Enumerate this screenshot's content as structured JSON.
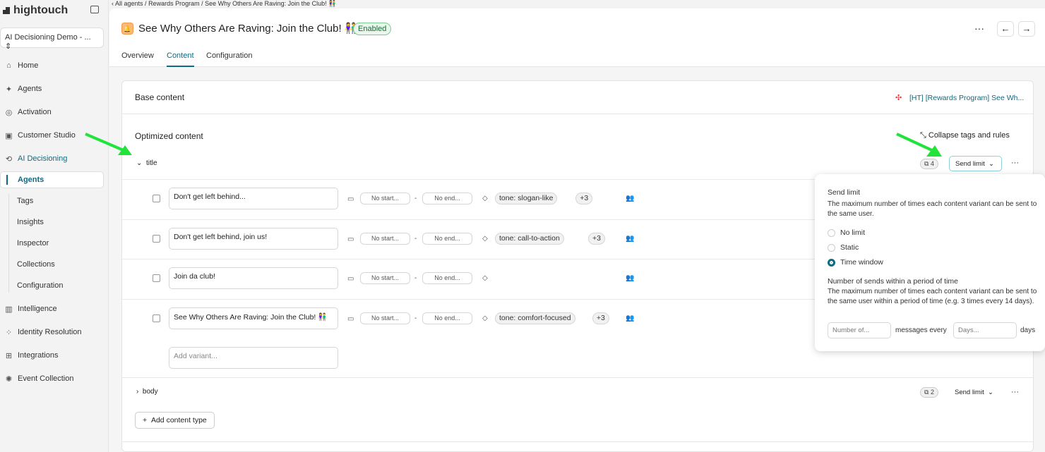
{
  "sidebar": {
    "logo": "hightouch",
    "workspace": "AI Decisioning Demo - ... ⇕",
    "items": [
      {
        "label": "Home",
        "icon": "home-icon"
      },
      {
        "label": "Agents",
        "icon": "sparkle-icon"
      },
      {
        "label": "Activation",
        "icon": "activation-icon"
      },
      {
        "label": "Customer Studio",
        "icon": "studio-icon"
      },
      {
        "label": "AI Decisioning",
        "icon": "ai-icon"
      }
    ],
    "sub_items": [
      "Agents",
      "Tags",
      "Insights",
      "Inspector",
      "Collections",
      "Configuration"
    ],
    "more_items": [
      {
        "label": "Intelligence",
        "icon": "chart-icon"
      },
      {
        "label": "Identity Resolution",
        "icon": "identity-icon"
      },
      {
        "label": "Integrations",
        "icon": "integrations-icon"
      },
      {
        "label": "Event Collection",
        "icon": "event-icon"
      }
    ]
  },
  "breadcrumb": [
    "All agents",
    "Rewards Program",
    "See Why Others Are Raving: Join the Club! 👫"
  ],
  "header": {
    "title": "See Why Others Are Raving: Join the Club! 👫",
    "status": "Enabled",
    "tabs": [
      "Overview",
      "Content",
      "Configuration"
    ],
    "active_tab": "Content"
  },
  "base": {
    "label": "Base content",
    "link": "[HT] [Rewards Program] See Wh..."
  },
  "optimized": {
    "label": "Optimized content",
    "collapse": "Collapse tags and rules"
  },
  "groups": [
    {
      "name": "title",
      "count": "4",
      "send_limit": "Send limit"
    },
    {
      "name": "body",
      "count": "2",
      "send_limit": "Send limit"
    }
  ],
  "variants": [
    {
      "text": "Don't get left behind...",
      "start": "No start...",
      "end": "No end...",
      "tag": "tone: slogan-like",
      "more": "+3"
    },
    {
      "text": "Don't get left behind, join us!",
      "start": "No start...",
      "end": "No end...",
      "tag": "tone: call-to-action",
      "more": "+3"
    },
    {
      "text": "Join da club!",
      "start": "No start...",
      "end": "No end...",
      "tag": "",
      "more": ""
    },
    {
      "text": "See Why Others Are Raving: Join the Club! 👫",
      "start": "No start...",
      "end": "No end...",
      "tag": "tone: comfort-focused",
      "more": "+3"
    }
  ],
  "add_variant_placeholder": "Add variant...",
  "add_content_type": "Add content type",
  "popover": {
    "title": "Send limit",
    "desc": "The maximum number of times each content variant can be sent to the same user.",
    "options": [
      "No limit",
      "Static",
      "Time window"
    ],
    "selected": "Time window",
    "sub_title": "Number of sends within a period of time",
    "sub_desc": "The maximum number of times each content variant can be sent to the same user within a period of time (e.g. 3 times every 14 days).",
    "number_placeholder": "Number of...",
    "messages_every": "messages every",
    "days_placeholder": "Days...",
    "days": "days"
  },
  "colors": {
    "accent": "#0e6b80",
    "annotation_arrow": "#22e33a"
  }
}
